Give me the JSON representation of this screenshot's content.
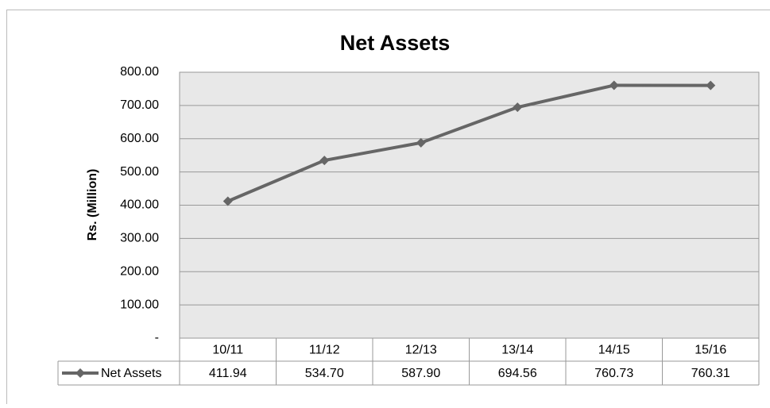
{
  "chart_data": {
    "type": "line",
    "title": "Net Assets",
    "y_label": "Rs. (Million)",
    "categories": [
      "10/11",
      "11/12",
      "12/13",
      "13/14",
      "14/15",
      "15/16"
    ],
    "series": [
      {
        "name": "Net Assets",
        "color": "#666666",
        "values": [
          411.94,
          534.7,
          587.9,
          694.56,
          760.73,
          760.31
        ],
        "value_labels": [
          "411.94",
          "534.70",
          "587.90",
          "694.56",
          "760.73",
          "760.31"
        ]
      }
    ],
    "ylim": [
      0,
      800
    ],
    "yticks": [
      {
        "value": 0,
        "label": "-"
      },
      {
        "value": 100,
        "label": "100.00"
      },
      {
        "value": 200,
        "label": "200.00"
      },
      {
        "value": 300,
        "label": "300.00"
      },
      {
        "value": 400,
        "label": "400.00"
      },
      {
        "value": 500,
        "label": "500.00"
      },
      {
        "value": 600,
        "label": "600.00"
      },
      {
        "value": 700,
        "label": "700.00"
      },
      {
        "value": 800,
        "label": "800.00"
      }
    ],
    "grid": true,
    "data_table": true
  }
}
